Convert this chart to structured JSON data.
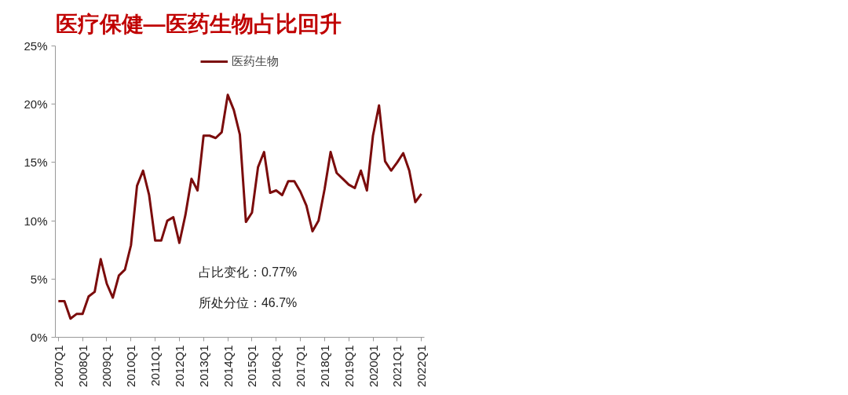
{
  "chart_data": {
    "type": "line",
    "title": "医疗保健—医药生物占比回升",
    "categories": [
      "2007Q1",
      null,
      null,
      null,
      "2008Q1",
      null,
      null,
      null,
      "2009Q1",
      null,
      null,
      null,
      "2010Q1",
      null,
      null,
      null,
      "2011Q1",
      null,
      null,
      null,
      "2012Q1",
      null,
      null,
      null,
      "2013Q1",
      null,
      null,
      null,
      "2014Q1",
      null,
      null,
      null,
      "2015Q1",
      null,
      null,
      null,
      "2016Q1",
      null,
      null,
      null,
      "2017Q1",
      null,
      null,
      null,
      "2018Q1",
      null,
      null,
      null,
      "2019Q1",
      null,
      null,
      null,
      "2020Q1",
      null,
      null,
      null,
      "2021Q1",
      null,
      null,
      null,
      "2022Q1"
    ],
    "series": [
      {
        "name": "医药生物",
        "color": "#7b0c0c",
        "values": [
          3.1,
          3.1,
          1.6,
          2.0,
          2.0,
          3.5,
          3.9,
          6.7,
          4.6,
          3.4,
          5.3,
          5.8,
          7.9,
          13.0,
          14.3,
          12.2,
          8.3,
          8.3,
          10.0,
          10.3,
          8.1,
          10.5,
          13.6,
          12.6,
          17.3,
          17.3,
          17.1,
          17.6,
          20.8,
          19.5,
          17.4,
          9.9,
          10.7,
          14.6,
          15.9,
          12.4,
          12.6,
          12.2,
          13.4,
          13.4,
          12.5,
          11.3,
          9.1,
          10.0,
          12.7,
          15.9,
          14.1,
          13.6,
          13.1,
          12.8,
          14.3,
          12.6,
          17.3,
          19.9,
          15.1,
          14.3,
          15.0,
          15.8,
          14.3,
          11.6,
          12.3
        ]
      }
    ],
    "ylim": [
      0,
      25
    ],
    "yticks": [
      {
        "value": 0,
        "label": "0%"
      },
      {
        "value": 5,
        "label": "5%"
      },
      {
        "value": 10,
        "label": "10%"
      },
      {
        "value": 15,
        "label": "15%"
      },
      {
        "value": 20,
        "label": "20%"
      },
      {
        "value": 25,
        "label": "25%"
      }
    ],
    "annotations": [
      "占比变化：0.77%",
      "所处分位：46.7%"
    ],
    "legend": "top",
    "grid": false,
    "marker": "none",
    "line_style": "solid"
  }
}
